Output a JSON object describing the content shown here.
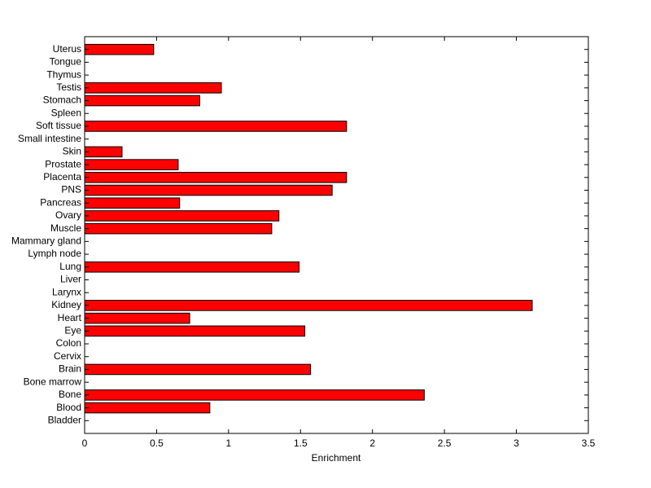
{
  "chart_data": {
    "type": "barh",
    "x_label": "Enrichment",
    "color": "#ff0000",
    "categories": [
      "Bladder",
      "Blood",
      "Bone",
      "Bone marrow",
      "Brain",
      "Cervix",
      "Colon",
      "Eye",
      "Heart",
      "Kidney",
      "Larynx",
      "Liver",
      "Lung",
      "Lymph node",
      "Mammary gland",
      "Muscle",
      "Ovary",
      "Pancreas",
      "PNS",
      "Placenta",
      "Prostate",
      "Skin",
      "Small intestine",
      "Soft tissue",
      "Spleen",
      "Stomach",
      "Testis",
      "Thymus",
      "Tongue",
      "Uterus"
    ],
    "values": [
      0,
      0.87,
      2.36,
      0,
      1.57,
      0,
      0,
      1.53,
      0.73,
      3.11,
      0,
      0,
      1.49,
      0,
      0,
      1.3,
      1.35,
      0.66,
      1.72,
      1.82,
      0.65,
      0.26,
      0,
      1.82,
      0,
      0.8,
      0.95,
      0,
      0,
      0.48
    ],
    "xlim": [
      0,
      3.5
    ],
    "xticks": [
      0,
      0.5,
      1,
      1.5,
      2,
      2.5,
      3,
      3.5
    ]
  }
}
